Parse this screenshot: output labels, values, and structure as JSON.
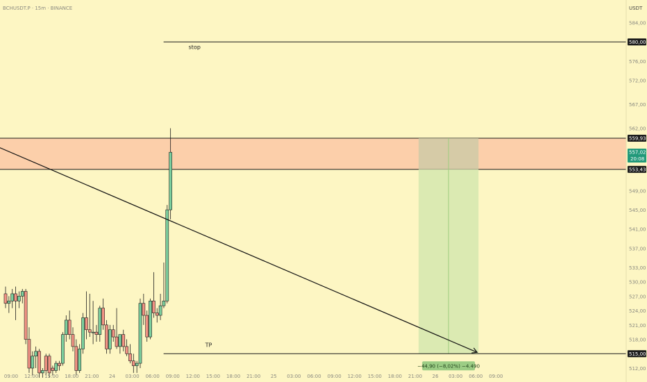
{
  "symbol_label": "BCHUSDT.P · 15m · BINANCE",
  "currency_label": "USDT",
  "chart_data": {
    "type": "candlestick",
    "title": "BCHUSDT.P · 15m · BINANCE",
    "y_axis_unit": "USDT",
    "ylim": [
      512,
      587
    ],
    "y_ticks": [
      "584,00",
      "576,00",
      "572,00",
      "567,00",
      "562,00",
      "549,00",
      "545,00",
      "541,00",
      "537,00",
      "533,00",
      "530,00",
      "527,00",
      "524,00",
      "521,00",
      "518,00",
      "512,00"
    ],
    "x_ticks": [
      "09:00",
      "12:00",
      "15:00",
      "18:00",
      "21:00",
      "24",
      "03:00",
      "06:00",
      "09:00",
      "12:00",
      "15:00",
      "18:00",
      "21:00",
      "25",
      "03:00",
      "06:00",
      "09:00",
      "12:00",
      "15:00",
      "18:00",
      "21:00",
      "26",
      "03:00",
      "06:00",
      "09:00"
    ],
    "candles": [
      {
        "o": 527.5,
        "h": 529.0,
        "l": 524.5,
        "c": 525.5
      },
      {
        "o": 525.5,
        "h": 527.0,
        "l": 523.5,
        "c": 526.0
      },
      {
        "o": 526.0,
        "h": 528.5,
        "l": 524.5,
        "c": 527.5
      },
      {
        "o": 527.5,
        "h": 529.0,
        "l": 522.0,
        "c": 526.0
      },
      {
        "o": 526.0,
        "h": 528.0,
        "l": 524.5,
        "c": 527.0
      },
      {
        "o": 527.0,
        "h": 528.5,
        "l": 525.5,
        "c": 528.0
      },
      {
        "o": 528.0,
        "h": 528.5,
        "l": 517.0,
        "c": 518.0
      },
      {
        "o": 518.0,
        "h": 520.5,
        "l": 511.0,
        "c": 512.0
      },
      {
        "o": 512.0,
        "h": 515.5,
        "l": 510.5,
        "c": 514.5
      },
      {
        "o": 514.5,
        "h": 516.5,
        "l": 512.0,
        "c": 515.5
      },
      {
        "o": 515.5,
        "h": 516.0,
        "l": 510.0,
        "c": 511.0
      },
      {
        "o": 511.0,
        "h": 512.0,
        "l": 510.0,
        "c": 511.5
      },
      {
        "o": 514.5,
        "h": 515.0,
        "l": 510.5,
        "c": 511.5
      },
      {
        "o": 514.5,
        "h": 515.0,
        "l": 510.0,
        "c": 511.0
      },
      {
        "o": 512.0,
        "h": 512.5,
        "l": 510.5,
        "c": 511.5
      },
      {
        "o": 511.5,
        "h": 513.5,
        "l": 511.0,
        "c": 513.0
      },
      {
        "o": 513.0,
        "h": 513.5,
        "l": 511.5,
        "c": 512.5
      },
      {
        "o": 513.0,
        "h": 519.5,
        "l": 512.5,
        "c": 519.0
      },
      {
        "o": 519.0,
        "h": 523.0,
        "l": 517.5,
        "c": 522.0
      },
      {
        "o": 522.0,
        "h": 524.0,
        "l": 518.0,
        "c": 519.0
      },
      {
        "o": 519.0,
        "h": 520.5,
        "l": 515.5,
        "c": 516.5
      },
      {
        "o": 516.5,
        "h": 518.0,
        "l": 510.5,
        "c": 511.5
      },
      {
        "o": 511.5,
        "h": 517.0,
        "l": 511.0,
        "c": 516.0
      },
      {
        "o": 516.0,
        "h": 523.5,
        "l": 515.0,
        "c": 522.5
      },
      {
        "o": 522.5,
        "h": 528.0,
        "l": 518.0,
        "c": 520.0
      },
      {
        "o": 520.0,
        "h": 527.5,
        "l": 518.5,
        "c": 519.5
      },
      {
        "o": 519.5,
        "h": 526.0,
        "l": 517.0,
        "c": 519.5
      },
      {
        "o": 519.5,
        "h": 521.0,
        "l": 517.5,
        "c": 519.0
      },
      {
        "o": 519.0,
        "h": 525.0,
        "l": 517.5,
        "c": 524.5
      },
      {
        "o": 524.5,
        "h": 526.5,
        "l": 520.0,
        "c": 521.0
      },
      {
        "o": 521.0,
        "h": 522.0,
        "l": 515.0,
        "c": 516.0
      },
      {
        "o": 516.0,
        "h": 521.0,
        "l": 515.0,
        "c": 520.0
      },
      {
        "o": 520.0,
        "h": 521.0,
        "l": 517.5,
        "c": 518.5
      },
      {
        "o": 518.5,
        "h": 524.5,
        "l": 516.0,
        "c": 516.5
      },
      {
        "o": 516.5,
        "h": 519.0,
        "l": 515.0,
        "c": 519.0
      },
      {
        "o": 519.0,
        "h": 520.0,
        "l": 515.5,
        "c": 516.5
      },
      {
        "o": 516.5,
        "h": 518.0,
        "l": 514.5,
        "c": 515.0
      },
      {
        "o": 515.0,
        "h": 517.0,
        "l": 513.0,
        "c": 513.5
      },
      {
        "o": 513.5,
        "h": 515.0,
        "l": 511.0,
        "c": 512.5
      },
      {
        "o": 512.5,
        "h": 513.5,
        "l": 511.0,
        "c": 513.0
      },
      {
        "o": 513.0,
        "h": 526.5,
        "l": 512.0,
        "c": 525.5
      },
      {
        "o": 525.5,
        "h": 527.5,
        "l": 521.0,
        "c": 523.0
      },
      {
        "o": 523.0,
        "h": 524.0,
        "l": 517.5,
        "c": 518.5
      },
      {
        "o": 518.5,
        "h": 526.5,
        "l": 518.0,
        "c": 526.0
      },
      {
        "o": 526.0,
        "h": 532.0,
        "l": 522.5,
        "c": 523.5
      },
      {
        "o": 523.5,
        "h": 524.5,
        "l": 521.5,
        "c": 523.0
      },
      {
        "o": 523.0,
        "h": 527.5,
        "l": 522.0,
        "c": 525.0
      },
      {
        "o": 525.0,
        "h": 534.0,
        "l": 524.5,
        "c": 526.0
      },
      {
        "o": 526.0,
        "h": 546.0,
        "l": 525.5,
        "c": 545.0
      },
      {
        "o": 545.0,
        "h": 562.0,
        "l": 543.0,
        "c": 557.0
      }
    ],
    "horizontal_lines": [
      {
        "label": "stop",
        "price": 580.0,
        "price_label": "580,00"
      },
      {
        "label": "TP",
        "price": 515.0,
        "price_label": "515,00"
      }
    ],
    "zone": {
      "top": 559.93,
      "bottom": 553.43,
      "top_label": "559,93",
      "bottom_label": "553,43",
      "color": "#fbc8a6"
    },
    "last_price": {
      "price": 557.02,
      "label": "557,02",
      "countdown": "20:08",
      "color": "#22997a"
    },
    "projection": {
      "from_price": 558.0,
      "to_price": 515.0,
      "from_time": "14:30",
      "to_time": "06:00"
    },
    "position_box": {
      "profit_color": "#d7e9b0",
      "stop_color": "#c9c9a6",
      "label": "−44,90 (−8,02%) −4.490"
    },
    "colors": {
      "up": "#7ccf9e",
      "down": "#f29384",
      "background": "#fdf6c3"
    }
  }
}
